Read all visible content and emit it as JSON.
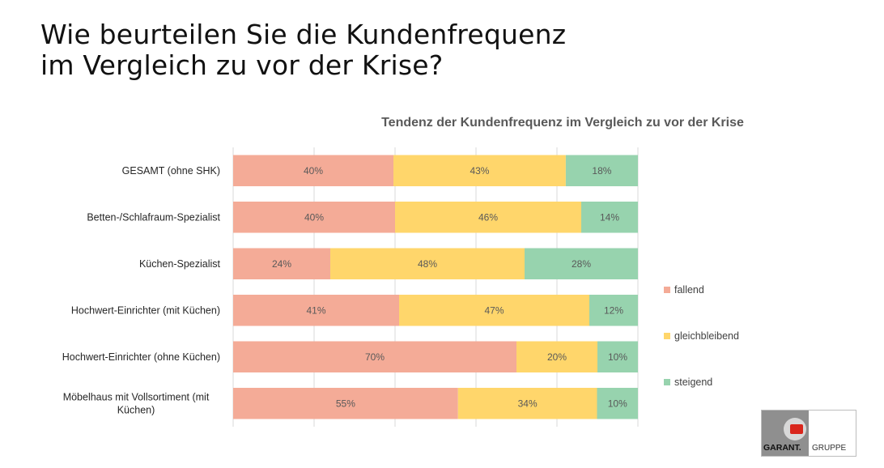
{
  "slide": {
    "title_line1": "Wie beurteilen Sie die Kundenfrequenz",
    "title_line2": "im Vergleich zu vor der Krise?"
  },
  "logo": {
    "text_left": "GARANT.",
    "text_right": "GRUPPE"
  },
  "chart_data": {
    "type": "bar",
    "orientation": "horizontal",
    "stacked": true,
    "stack_mode": "percent",
    "title": "Tendenz der Kundenfrequenz im Vergleich zu vor der Krise",
    "categories": [
      "GESAMT (ohne SHK)",
      "Betten-/Schlafraum-Spezialist",
      "Küchen-Spezialist",
      "Hochwert-Einrichter (mit Küchen)",
      "Hochwert-Einrichter (ohne Küchen)",
      "Möbelhaus mit Vollsortiment (mit Küchen)"
    ],
    "series": [
      {
        "name": "fallend",
        "color": "#F4AB97",
        "values": [
          40,
          40,
          24,
          41,
          70,
          55
        ]
      },
      {
        "name": "gleichbleibend",
        "color": "#FFD66B",
        "values": [
          43,
          46,
          48,
          47,
          20,
          34
        ]
      },
      {
        "name": "steigend",
        "color": "#97D3AE",
        "values": [
          18,
          14,
          28,
          12,
          10,
          10
        ]
      }
    ],
    "xlim": [
      0,
      100
    ],
    "gridlines": true,
    "data_labels": true,
    "label_format": "percent",
    "legend_position": "right"
  }
}
